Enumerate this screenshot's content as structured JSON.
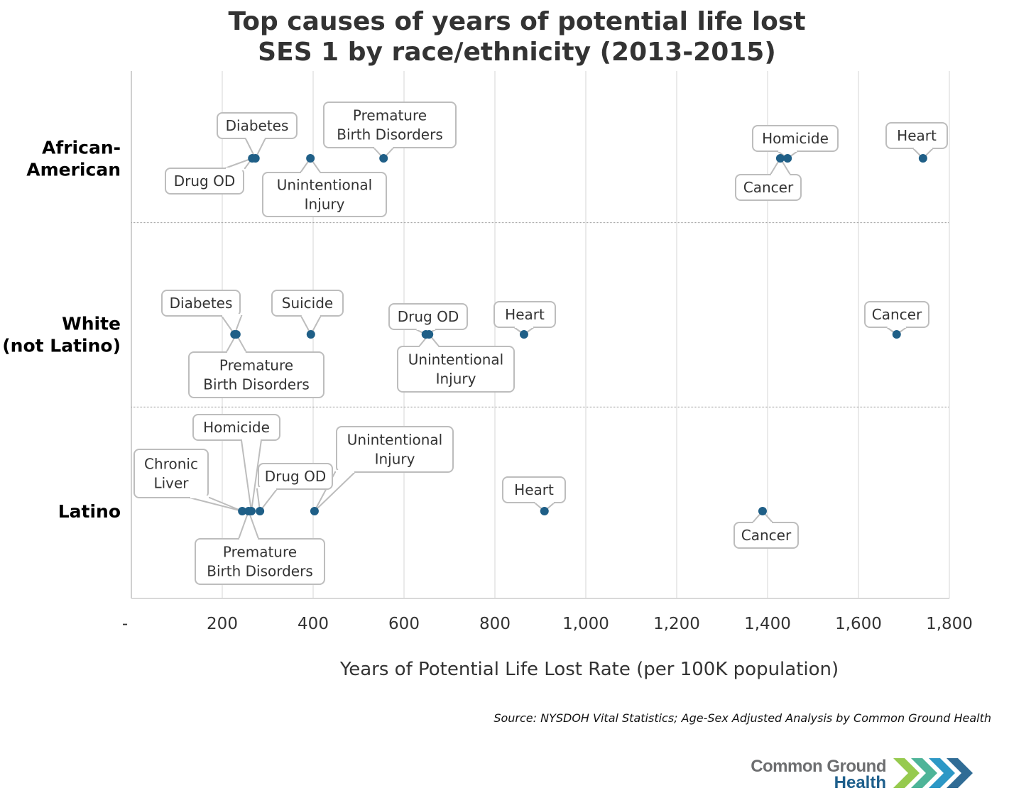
{
  "chart_data": {
    "type": "scatter",
    "title": [
      "Top causes of years of potential life lost",
      "SES 1 by race/ethnicity (2013-2015)"
    ],
    "xlabel": "Years of Potential Life Lost Rate (per 100K population)",
    "ylabel": "",
    "xlim": [
      0,
      1800
    ],
    "x_ticks": [
      0,
      200,
      400,
      600,
      800,
      1000,
      1200,
      1400,
      1600,
      1800
    ],
    "x_tick_labels": [
      "-",
      "200",
      "400",
      "600",
      "800",
      "1,000",
      "1,200",
      "1,400",
      "1,600",
      "1,800"
    ],
    "grid": "vertical",
    "marker_color": "#1f5f87",
    "categories": [
      {
        "label": [
          "African-",
          "American"
        ],
        "points": [
          {
            "name": "Drug OD",
            "lines": [
              "Drug OD"
            ],
            "value": 266
          },
          {
            "name": "Diabetes",
            "lines": [
              "Diabetes"
            ],
            "value": 273
          },
          {
            "name": "Unintentional Injury",
            "lines": [
              "Unintentional",
              "Injury"
            ],
            "value": 394
          },
          {
            "name": "Premature Birth Disorders",
            "lines": [
              "Premature",
              "Birth Disorders"
            ],
            "value": 555
          },
          {
            "name": "Cancer",
            "lines": [
              "Cancer"
            ],
            "value": 1428
          },
          {
            "name": "Homicide",
            "lines": [
              "Homicide"
            ],
            "value": 1444
          },
          {
            "name": "Heart",
            "lines": [
              "Heart"
            ],
            "value": 1742
          }
        ]
      },
      {
        "label": [
          "White",
          "(not Latino)"
        ],
        "points": [
          {
            "name": "Diabetes",
            "lines": [
              "Diabetes"
            ],
            "value": 227
          },
          {
            "name": "Premature Birth Disorders",
            "lines": [
              "Premature",
              "Birth Disorders"
            ],
            "value": 231
          },
          {
            "name": "Suicide",
            "lines": [
              "Suicide"
            ],
            "value": 395
          },
          {
            "name": "Drug OD",
            "lines": [
              "Drug OD"
            ],
            "value": 648
          },
          {
            "name": "Unintentional Injury",
            "lines": [
              "Unintentional",
              "Injury"
            ],
            "value": 655
          },
          {
            "name": "Heart",
            "lines": [
              "Heart"
            ],
            "value": 864
          },
          {
            "name": "Cancer",
            "lines": [
              "Cancer"
            ],
            "value": 1684
          }
        ]
      },
      {
        "label": [
          "Latino"
        ],
        "points": [
          {
            "name": "Chronic Liver",
            "lines": [
              "Chronic",
              "Liver"
            ],
            "value": 244
          },
          {
            "name": "Premature Birth Disorders",
            "lines": [
              "Premature",
              "Birth Disorders"
            ],
            "value": 258
          },
          {
            "name": "Homicide",
            "lines": [
              "Homicide"
            ],
            "value": 264
          },
          {
            "name": "Drug OD",
            "lines": [
              "Drug OD"
            ],
            "value": 283
          },
          {
            "name": "Unintentional Injury",
            "lines": [
              "Unintentional",
              "Injury"
            ],
            "value": 403
          },
          {
            "name": "Heart",
            "lines": [
              "Heart"
            ],
            "value": 909
          },
          {
            "name": "Cancer",
            "lines": [
              "Cancer"
            ],
            "value": 1389
          }
        ]
      }
    ],
    "source": "Source: NYSDOH Vital Statistics; Age-Sex Adjusted Analysis by Common Ground Health"
  },
  "logo": {
    "line1": "Common Ground",
    "line2": "Health",
    "colors": [
      "#8dc63f",
      "#3fae8f",
      "#1b8fc1",
      "#1e5f8c"
    ]
  }
}
